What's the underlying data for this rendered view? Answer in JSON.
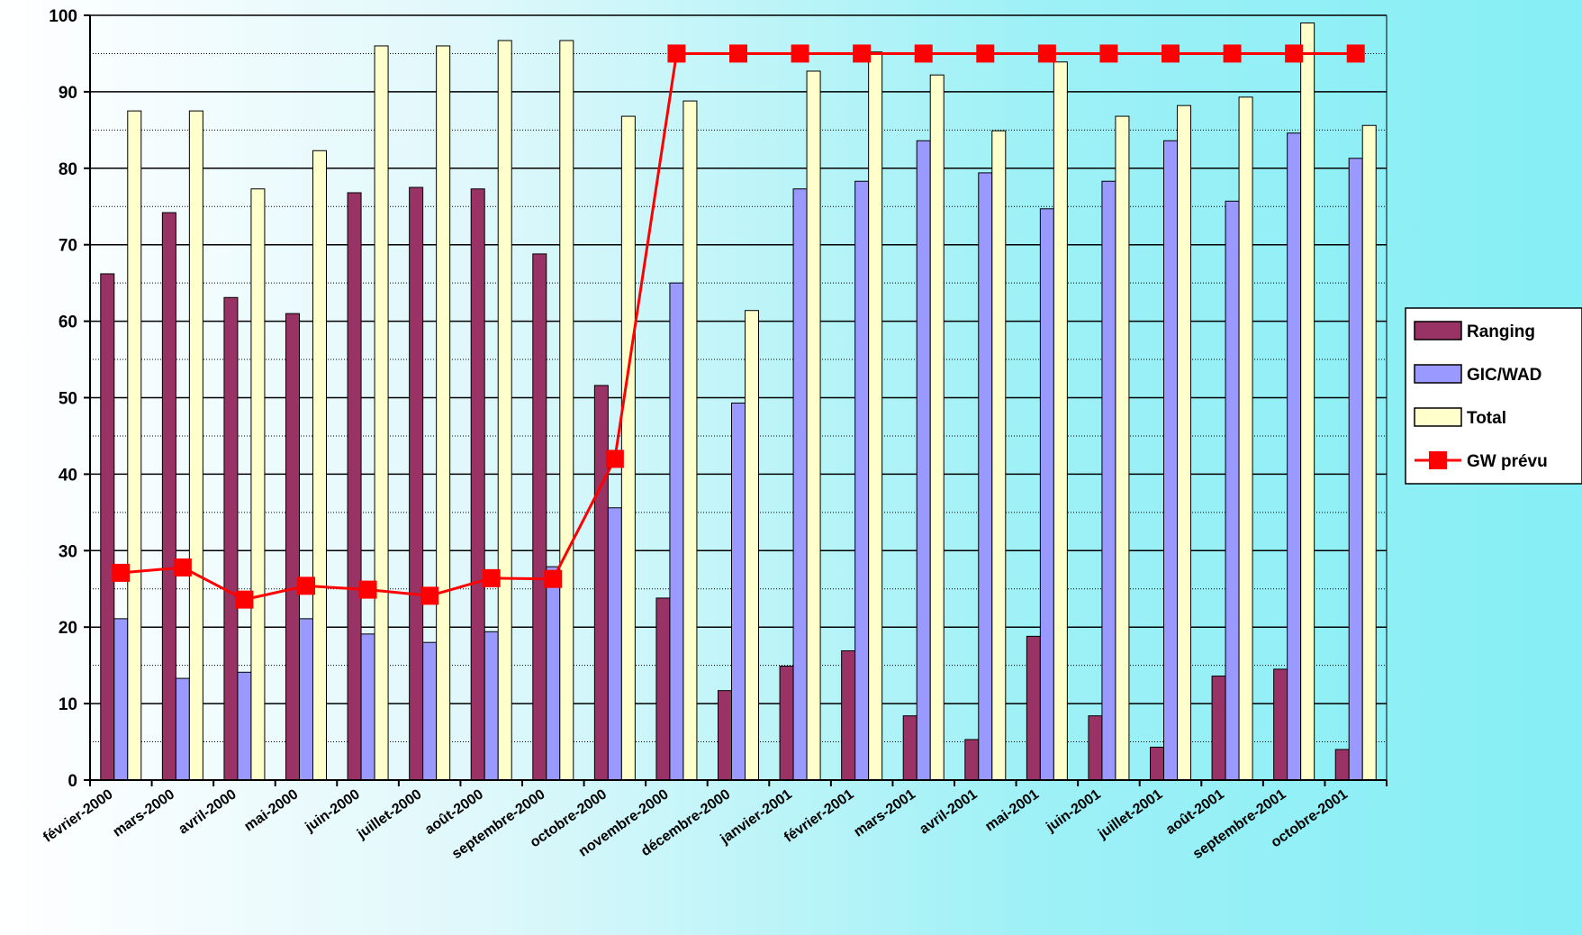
{
  "chart_data": {
    "type": "bar",
    "title": "",
    "xlabel": "",
    "ylabel": "",
    "ylim": [
      0,
      100
    ],
    "yticks": [
      0,
      10,
      20,
      30,
      40,
      50,
      60,
      70,
      80,
      90,
      100
    ],
    "grid": "major solid, minor dotted",
    "legend_position": "right",
    "categories": [
      "février-2000",
      "mars-2000",
      "avril-2000",
      "mai-2000",
      "juin-2000",
      "juillet-2000",
      "août-2000",
      "septembre-2000",
      "octobre-2000",
      "novembre-2000",
      "décembre-2000",
      "janvier-2001",
      "février-2001",
      "mars-2001",
      "avril-2001",
      "mai-2001",
      "juin-2001",
      "juillet-2001",
      "août-2001",
      "septembre-2001",
      "octobre-2001"
    ],
    "series": [
      {
        "name": "Ranging",
        "type": "bar",
        "color": "#993366",
        "values": [
          66.2,
          74.2,
          63.1,
          61.0,
          76.8,
          77.5,
          77.3,
          68.8,
          51.6,
          23.8,
          11.7,
          14.9,
          16.9,
          8.4,
          5.3,
          18.8,
          8.4,
          4.3,
          13.6,
          14.5,
          4.0
        ]
      },
      {
        "name": "GIC/WAD",
        "type": "bar",
        "color": "#9999ff",
        "values": [
          21.1,
          13.3,
          14.1,
          21.1,
          19.1,
          18.0,
          19.4,
          27.9,
          35.6,
          65.0,
          49.3,
          77.3,
          78.3,
          83.6,
          79.4,
          74.7,
          78.3,
          83.6,
          75.7,
          84.6,
          81.3
        ]
      },
      {
        "name": "Total",
        "type": "bar",
        "color": "#ffffcc",
        "values": [
          87.5,
          87.5,
          77.3,
          82.3,
          96.0,
          96.0,
          96.7,
          96.7,
          86.8,
          88.8,
          61.4,
          92.7,
          95.2,
          92.2,
          84.9,
          93.9,
          86.8,
          88.2,
          89.3,
          99.0,
          85.6
        ]
      },
      {
        "name": "GW prévu",
        "type": "line",
        "color": "#ff0000",
        "values": [
          27.1,
          27.8,
          23.6,
          25.4,
          24.9,
          24.1,
          26.4,
          26.3,
          42.0,
          95.0,
          95.0,
          95.0,
          95.0,
          95.0,
          95.0,
          95.0,
          95.0,
          95.0,
          95.0,
          95.0,
          95.0
        ]
      }
    ]
  }
}
